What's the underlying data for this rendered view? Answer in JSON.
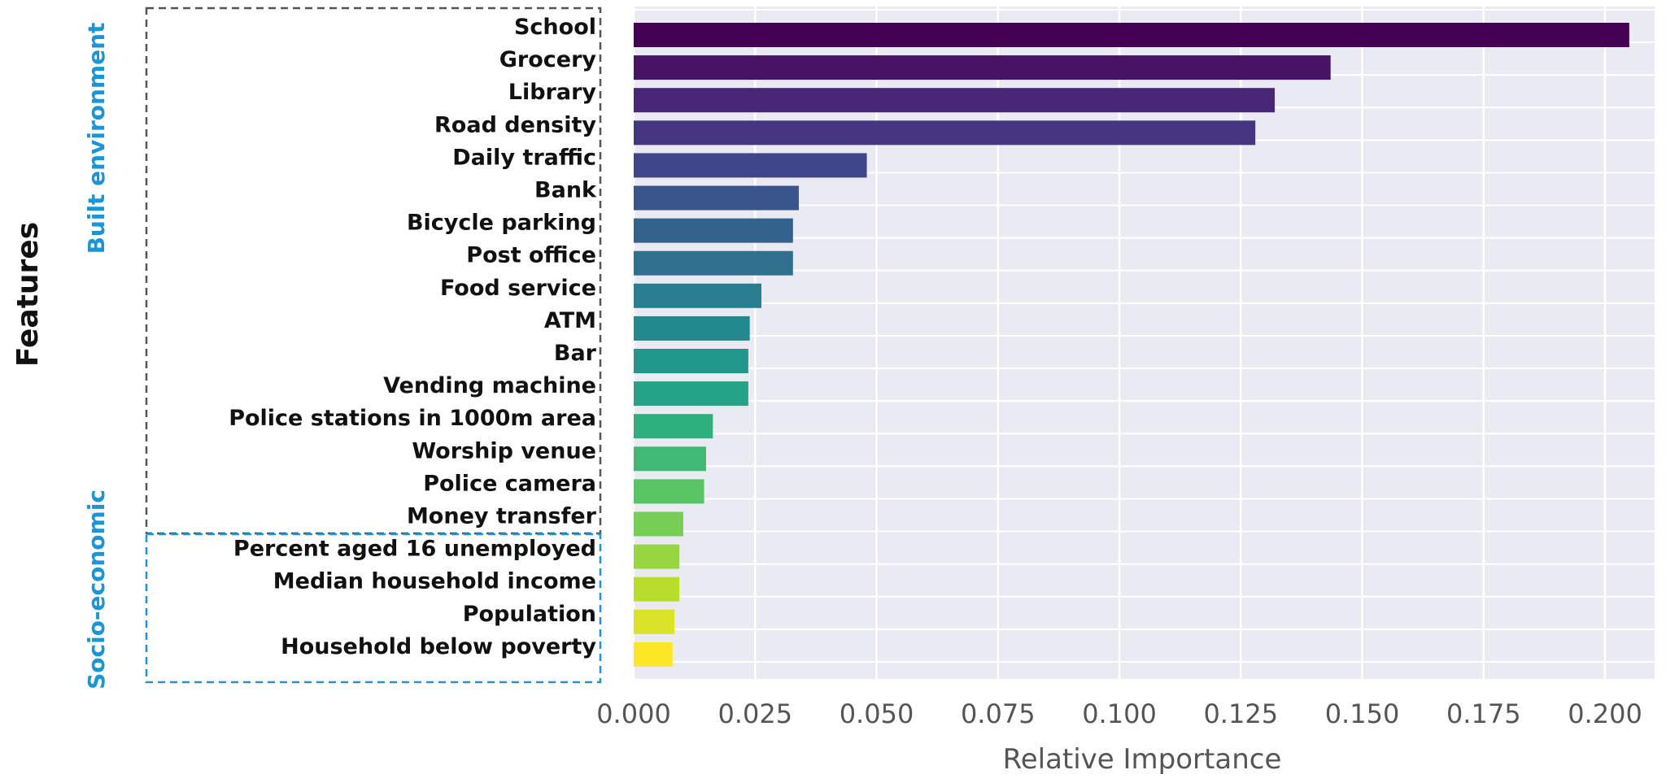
{
  "chart_data": {
    "type": "bar",
    "orientation": "horizontal",
    "categories": [
      "School",
      "Grocery",
      "Library",
      "Road density",
      "Daily traffic",
      "Bank",
      "Bicycle parking",
      "Post office",
      "Food service",
      "ATM",
      "Bar",
      "Vending machine",
      "Police stations in 1000m area",
      "Worship venue",
      "Police camera",
      "Money transfer",
      "Percent aged 16 unemployed",
      "Median household income",
      "Population",
      "Household below poverty"
    ],
    "values": [
      0.205,
      0.1435,
      0.132,
      0.128,
      0.048,
      0.034,
      0.0328,
      0.0328,
      0.0263,
      0.0239,
      0.0236,
      0.0236,
      0.0163,
      0.0149,
      0.0145,
      0.0102,
      0.0094,
      0.0094,
      0.0084,
      0.008
    ],
    "xlabel": "Relative Importance",
    "ylabel": "Features",
    "xticks": [
      "0.000",
      "0.025",
      "0.050",
      "0.075",
      "0.100",
      "0.125",
      "0.150",
      "0.175",
      "0.200"
    ],
    "xlim": [
      0,
      0.21
    ],
    "grid": true,
    "colormap": "viridis",
    "groups": [
      {
        "label": "Built environment",
        "color": "#1b95d6",
        "from": 0,
        "to": 15
      },
      {
        "label": "Socio-economic",
        "color": "#1b95d6",
        "from": 16,
        "to": 19
      }
    ],
    "colors": {
      "plot_background": "#eaeaf2",
      "grid": "#ffffff",
      "group_box_built": "#555555",
      "group_box_socio": "#1b95d6"
    }
  }
}
